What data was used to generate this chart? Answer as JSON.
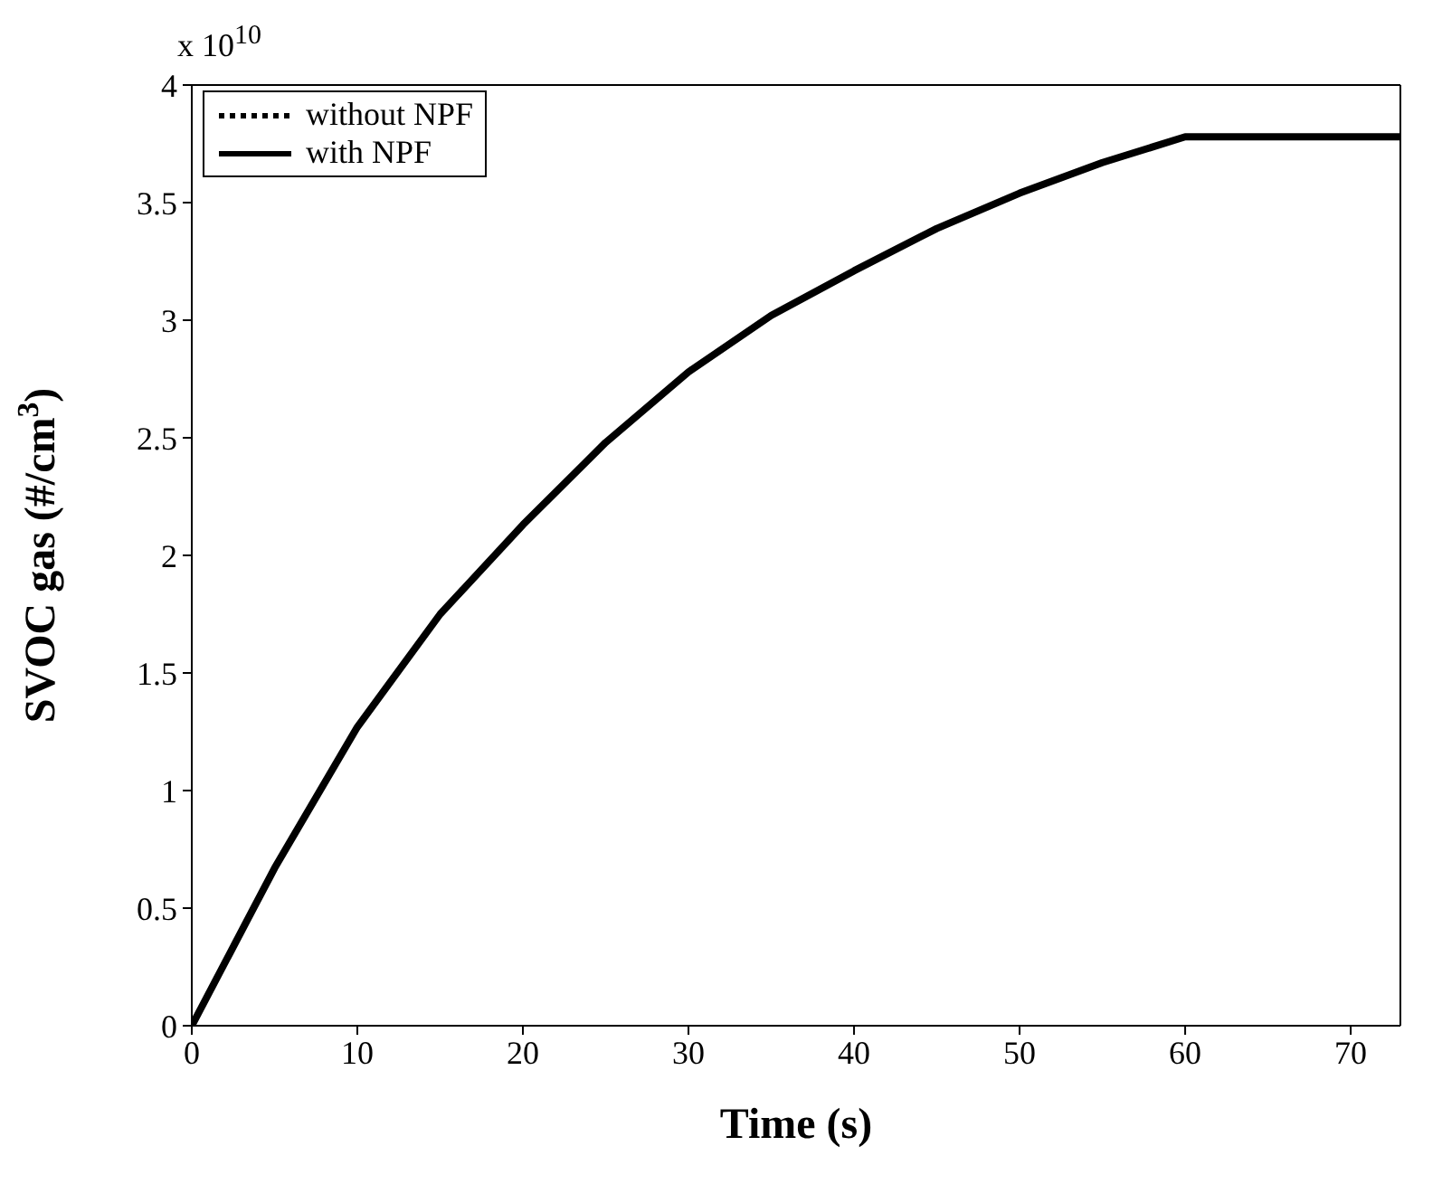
{
  "chart_data": {
    "type": "line",
    "xlabel": "Time (s)",
    "ylabel": "SVOC gas (#/cm$^{3}$)",
    "annotations": [
      "x 10$^{10}$"
    ],
    "x": [
      0,
      5,
      10,
      15,
      20,
      25,
      30,
      35,
      40,
      45,
      50,
      55,
      60,
      73
    ],
    "series": [
      {
        "name": "without NPF",
        "color": "#000000",
        "line_style": "dotted",
        "values": [
          null,
          null,
          null,
          null,
          null,
          null,
          null,
          null,
          null,
          null,
          null,
          null,
          null,
          null
        ]
      },
      {
        "name": "with NPF",
        "color": "#000000",
        "line_style": "solid",
        "values": [
          0,
          0.67,
          1.27,
          1.75,
          2.13,
          2.48,
          2.78,
          3.02,
          3.21,
          3.39,
          3.54,
          3.67,
          3.78,
          3.78
        ]
      }
    ],
    "xlim": [
      0,
      73
    ],
    "xticks": [
      0,
      10,
      20,
      30,
      40,
      50,
      60,
      70
    ],
    "ylim": [
      0,
      4
    ],
    "yticks": [
      0,
      0.5,
      1,
      1.5,
      2,
      2.5,
      3,
      3.5,
      4
    ],
    "grid": false,
    "legend": "top left",
    "marker": "none"
  }
}
